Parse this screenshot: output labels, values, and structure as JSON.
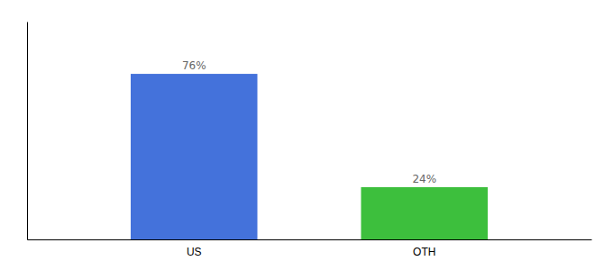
{
  "chart_data": {
    "type": "bar",
    "categories": [
      "US",
      "OTH"
    ],
    "values": [
      76,
      24
    ],
    "value_labels": [
      "76%",
      "24%"
    ],
    "colors": [
      "#4472db",
      "#3dbf3d"
    ],
    "ylim": [
      0,
      100
    ],
    "data_labels": true,
    "tick_labels": "x"
  }
}
